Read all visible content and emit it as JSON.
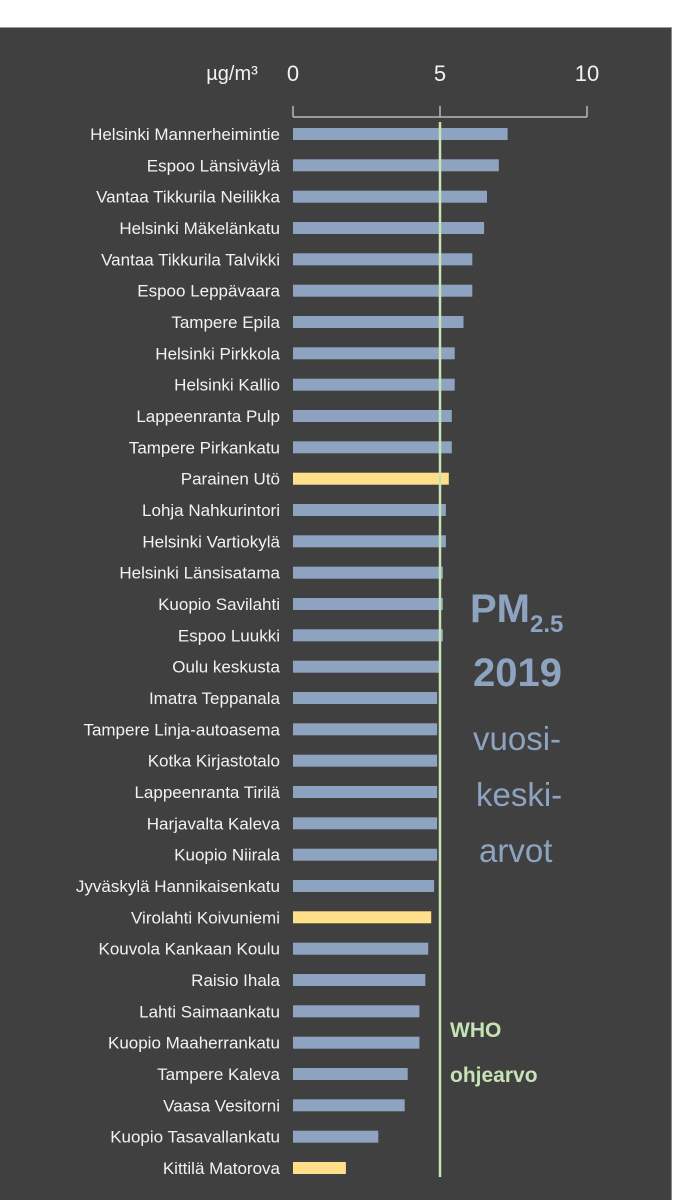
{
  "chart_data": {
    "type": "bar",
    "orientation": "horizontal",
    "title": "PM2.5 2019 vuosi-keski-arvot",
    "title_parts": {
      "pm_main": "PM",
      "pm_sub": "2.5",
      "year": "2019",
      "desc_lines": [
        "vuosi-",
        "keski-",
        "arvot"
      ]
    },
    "unit_label": "µg/m³",
    "xlim": [
      0,
      10
    ],
    "xticks": [
      0,
      5,
      10
    ],
    "xtick_labels": [
      "0",
      "5",
      "10"
    ],
    "grid": false,
    "reference_line": {
      "value": 5,
      "label_lines": [
        "WHO",
        "ohjearvo"
      ],
      "color": "#c6e3b5"
    },
    "colors": {
      "default": "#8ea3c0",
      "highlight": "#ffe08a",
      "background": "#404040",
      "text": "#f2f2f2"
    },
    "categories": [
      "Helsinki Mannerheimintie",
      "Espoo Länsiväylä",
      "Vantaa Tikkurila Neilikka",
      "Helsinki Mäkelänkatu",
      "Vantaa Tikkurila Talvikki",
      "Espoo Leppävaara",
      "Tampere Epila",
      "Helsinki Pirkkola",
      "Helsinki Kallio",
      "Lappeenranta Pulp",
      "Tampere Pirkankatu",
      "Parainen Utö",
      "Lohja Nahkurintori",
      "Helsinki Vartiokylä",
      "Helsinki Länsisatama",
      "Kuopio Savilahti",
      "Espoo Luukki",
      "Oulu keskusta",
      "Imatra Teppanala",
      "Tampere Linja-autoasema",
      "Kotka Kirjastotalo",
      "Lappeenranta Tirilä",
      "Harjavalta Kaleva",
      "Kuopio Niirala",
      "Jyväskylä Hannikaisenkatu",
      "Virolahti Koivuniemi",
      "Kouvola Kankaan Koulu",
      "Raisio Ihala",
      "Lahti Saimaankatu",
      "Kuopio Maaherrankatu",
      "Tampere Kaleva",
      "Vaasa Vesitorni",
      "Kuopio Tasavallankatu",
      "Kittilä Matorova"
    ],
    "values": [
      7.3,
      7.0,
      6.6,
      6.5,
      6.1,
      6.1,
      5.8,
      5.5,
      5.5,
      5.4,
      5.4,
      5.3,
      5.2,
      5.2,
      5.1,
      5.1,
      5.1,
      5.0,
      4.9,
      4.9,
      4.9,
      4.9,
      4.9,
      4.9,
      4.8,
      4.7,
      4.6,
      4.5,
      4.3,
      4.3,
      3.9,
      3.8,
      2.9,
      1.8
    ],
    "highlighted": [
      "Parainen Utö",
      "Virolahti Koivuniemi",
      "Kittilä Matorova"
    ]
  }
}
